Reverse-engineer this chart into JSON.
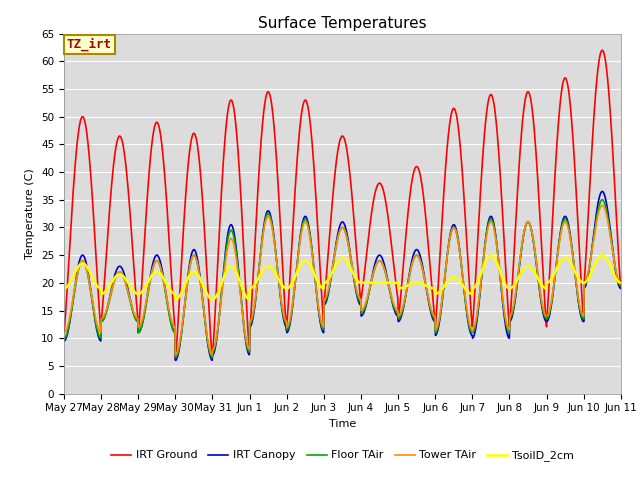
{
  "title": "Surface Temperatures",
  "xlabel": "Time",
  "ylabel": "Temperature (C)",
  "ylim": [
    0,
    65
  ],
  "yticks": [
    0,
    5,
    10,
    15,
    20,
    25,
    30,
    35,
    40,
    45,
    50,
    55,
    60,
    65
  ],
  "annotation_text": "TZ_irt",
  "annotation_bg": "#FFFFCC",
  "annotation_border": "#AA8800",
  "plot_bg": "#DCDCDC",
  "legend": [
    "IRT Ground",
    "IRT Canopy",
    "Floor TAir",
    "Tower TAir",
    "TsoilD_2cm"
  ],
  "line_colors": [
    "#FF0000",
    "#0000CC",
    "#00AA00",
    "#FF8C00",
    "#FFFF00"
  ],
  "line_widths": [
    1.2,
    1.2,
    1.2,
    1.2,
    1.8
  ],
  "xtick_labels": [
    "May 27",
    "May 28",
    "May 29",
    "May 30",
    "May 31",
    "Jun 1",
    "Jun 2",
    "Jun 3",
    "Jun 4",
    "Jun 5",
    "Jun 6",
    "Jun 7",
    "Jun 8",
    "Jun 9",
    "Jun 10",
    "Jun 11"
  ],
  "title_fontsize": 11,
  "axis_fontsize": 8,
  "tick_fontsize": 7.5,
  "legend_fontsize": 8
}
